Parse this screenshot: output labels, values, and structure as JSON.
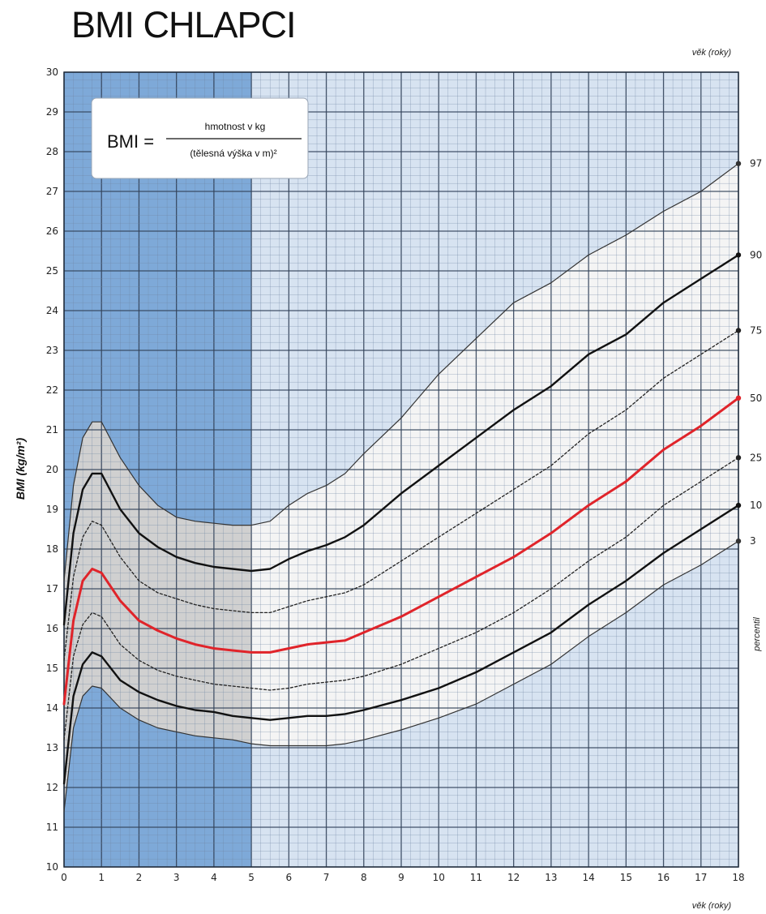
{
  "chart_data": {
    "type": "line",
    "title": "BMI CHLAPCI",
    "ylabel": "BMI (kg/m²)",
    "xlabel_top": "věk (roky)",
    "xlabel_bottom": "věk (roky)",
    "percentile_label": "percentil",
    "formula": {
      "lhs": "BMI =",
      "numerator": "hmotnost v kg",
      "denominator": "(tělesná výška v m)²"
    },
    "xlim": [
      0,
      18
    ],
    "ylim": [
      10,
      30
    ],
    "x_ticks": [
      0,
      1,
      2,
      3,
      4,
      5,
      6,
      7,
      8,
      9,
      10,
      11,
      12,
      13,
      14,
      15,
      16,
      17,
      18
    ],
    "y_ticks": [
      10,
      11,
      12,
      13,
      14,
      15,
      16,
      17,
      18,
      19,
      20,
      21,
      22,
      23,
      24,
      25,
      26,
      27,
      28,
      29,
      30
    ],
    "grid": true,
    "x": [
      0,
      0.25,
      0.5,
      0.75,
      1,
      1.5,
      2,
      2.5,
      3,
      3.5,
      4,
      4.5,
      5,
      5.5,
      6,
      6.5,
      7,
      7.5,
      8,
      9,
      10,
      11,
      12,
      13,
      14,
      15,
      16,
      17,
      18
    ],
    "series": [
      {
        "name": "97",
        "color": "#333333",
        "style": "thin",
        "values": [
          17.2,
          19.6,
          20.8,
          21.2,
          21.2,
          20.3,
          19.6,
          19.1,
          18.8,
          18.7,
          18.65,
          18.6,
          18.6,
          18.7,
          19.1,
          19.4,
          19.6,
          19.9,
          20.4,
          21.3,
          22.4,
          23.3,
          24.2,
          24.7,
          25.4,
          25.9,
          26.5,
          27.0,
          27.7
        ]
      },
      {
        "name": "90",
        "color": "#111111",
        "style": "thick",
        "values": [
          16.1,
          18.4,
          19.5,
          19.9,
          19.9,
          19.0,
          18.4,
          18.05,
          17.8,
          17.65,
          17.55,
          17.5,
          17.45,
          17.5,
          17.75,
          17.95,
          18.1,
          18.3,
          18.6,
          19.4,
          20.1,
          20.8,
          21.5,
          22.1,
          22.9,
          23.4,
          24.2,
          24.8,
          25.4
        ]
      },
      {
        "name": "75",
        "color": "#222222",
        "style": "dashed",
        "values": [
          15.2,
          17.3,
          18.3,
          18.7,
          18.6,
          17.8,
          17.2,
          16.9,
          16.75,
          16.6,
          16.5,
          16.45,
          16.4,
          16.4,
          16.55,
          16.7,
          16.8,
          16.9,
          17.1,
          17.7,
          18.3,
          18.9,
          19.5,
          20.1,
          20.9,
          21.5,
          22.3,
          22.9,
          23.5
        ]
      },
      {
        "name": "50",
        "color": "#e0242a",
        "style": "thick",
        "values": [
          14.1,
          16.2,
          17.2,
          17.5,
          17.4,
          16.7,
          16.2,
          15.95,
          15.75,
          15.6,
          15.5,
          15.45,
          15.4,
          15.4,
          15.5,
          15.6,
          15.65,
          15.7,
          15.9,
          16.3,
          16.8,
          17.3,
          17.8,
          18.4,
          19.1,
          19.7,
          20.5,
          21.1,
          21.8
        ]
      },
      {
        "name": "25",
        "color": "#222222",
        "style": "dashed",
        "values": [
          13.2,
          15.3,
          16.1,
          16.4,
          16.3,
          15.6,
          15.2,
          14.95,
          14.8,
          14.7,
          14.6,
          14.55,
          14.5,
          14.45,
          14.5,
          14.6,
          14.65,
          14.7,
          14.8,
          15.1,
          15.5,
          15.9,
          16.4,
          17.0,
          17.7,
          18.3,
          19.1,
          19.7,
          20.3
        ]
      },
      {
        "name": "10",
        "color": "#111111",
        "style": "thick",
        "values": [
          12.1,
          14.3,
          15.1,
          15.4,
          15.3,
          14.7,
          14.4,
          14.2,
          14.05,
          13.95,
          13.9,
          13.8,
          13.75,
          13.7,
          13.75,
          13.8,
          13.8,
          13.85,
          13.95,
          14.2,
          14.5,
          14.9,
          15.4,
          15.9,
          16.6,
          17.2,
          17.9,
          18.5,
          19.1
        ]
      },
      {
        "name": "3",
        "color": "#333333",
        "style": "thin",
        "values": [
          11.4,
          13.5,
          14.3,
          14.55,
          14.5,
          14.0,
          13.7,
          13.5,
          13.4,
          13.3,
          13.25,
          13.2,
          13.1,
          13.05,
          13.05,
          13.05,
          13.05,
          13.1,
          13.2,
          13.45,
          13.75,
          14.1,
          14.6,
          15.1,
          15.8,
          16.4,
          17.1,
          17.6,
          18.2
        ]
      }
    ],
    "colors": {
      "early_band": "#7ea9d8",
      "late_band": "#d7e3f1",
      "shade_early": "#d0d0d0",
      "shade_late": "#f4f4f4",
      "major_grid": "#33435a",
      "minor_grid": "#6f86a3",
      "highlight": "#e0242a"
    }
  }
}
